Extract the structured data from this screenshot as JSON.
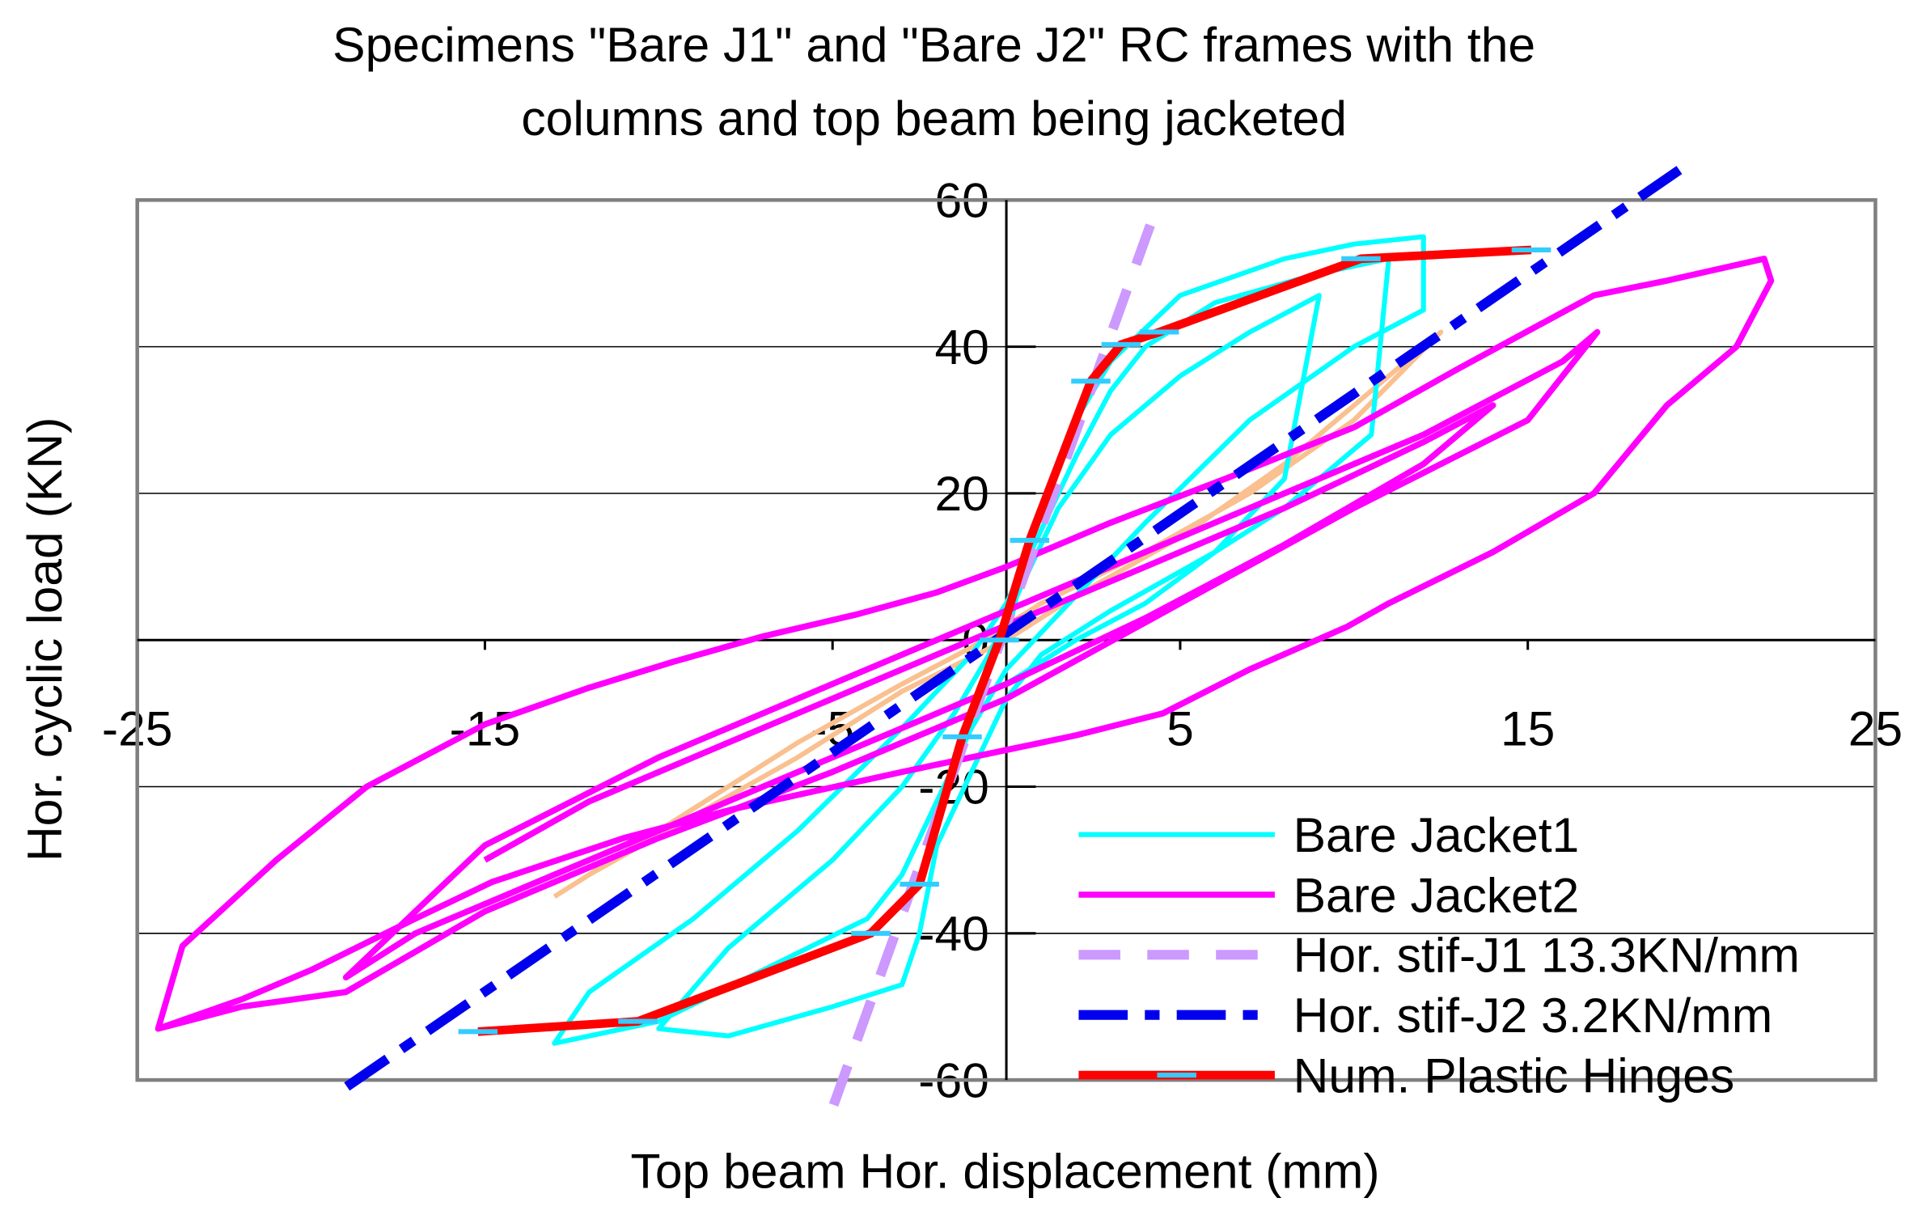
{
  "chart_data": {
    "type": "line",
    "title": [
      "Specimens \"Bare J1\" and \"Bare J2\" RC frames with the",
      "columns and top beam being jacketed"
    ],
    "xlabel": "Top beam Hor. displacement (mm)",
    "ylabel": "Hor. cyclic load  (KN)",
    "xlim": [
      -25,
      25
    ],
    "ylim": [
      -60,
      60
    ],
    "xticks": [
      -25,
      -15,
      -5,
      5,
      15,
      25
    ],
    "yticks": [
      -60,
      -40,
      -20,
      0,
      20,
      40,
      60
    ],
    "grid": true,
    "legend": "lower right",
    "series": [
      {
        "color": "#fac090",
        "line_style": "solid",
        "x": [
          -13,
          -11,
          -8,
          -6,
          -3,
          -1,
          1,
          4,
          7,
          10,
          12.5,
          11,
          8,
          5,
          2,
          0,
          -3,
          -6,
          -9,
          -12,
          -13
        ],
        "y": [
          -35,
          -29,
          -20,
          -14,
          -6,
          -1,
          5,
          12,
          20,
          30,
          42,
          36,
          24,
          14,
          6,
          0,
          -7,
          -16,
          -24,
          -32,
          -35
        ]
      },
      {
        "name": "Bare Jacket1",
        "color": "#00ffff",
        "line_style": "solid",
        "x": [
          0,
          0.5,
          1,
          2,
          3,
          5,
          8,
          10,
          12,
          12,
          10,
          7,
          4,
          2,
          0,
          -1,
          -2,
          -3,
          -4,
          -7,
          -10,
          -13,
          -12,
          -9,
          -6,
          -3,
          -1,
          0,
          1,
          2,
          3,
          4,
          6,
          9,
          11,
          10.5,
          8,
          6,
          3,
          1,
          0,
          -1,
          -2,
          -2.5,
          -3,
          -5,
          -8,
          -10,
          -8,
          -5,
          -3,
          -1.5,
          -0.5,
          0.5,
          1.5,
          3,
          5,
          7,
          9,
          8,
          6,
          4,
          2,
          0
        ],
        "y": [
          0,
          10,
          18,
          30,
          38,
          47,
          52,
          54,
          55,
          45,
          40,
          30,
          16,
          6,
          -4,
          -12,
          -22,
          -32,
          -38,
          -45,
          -52,
          -55,
          -48,
          -38,
          -26,
          -12,
          -2,
          5,
          15,
          25,
          34,
          40,
          46,
          50,
          52,
          28,
          18,
          12,
          4,
          -2,
          -8,
          -18,
          -28,
          -40,
          -47,
          -50,
          -54,
          -53,
          -42,
          -30,
          -20,
          -10,
          -2,
          8,
          18,
          28,
          36,
          42,
          47,
          22,
          12,
          5,
          0,
          -6
        ]
      },
      {
        "name": "Bare Jacket2",
        "color": "#ff00ff",
        "line_style": "solid",
        "x": [
          -24.4,
          -23.7,
          -21,
          -18.4,
          -15,
          -12,
          -9.6,
          -7,
          -4.3,
          -2,
          0,
          3,
          6.3,
          10,
          13,
          16.9,
          19,
          21.8,
          22,
          21,
          19,
          16.9,
          14,
          11,
          9.8,
          7,
          4.5,
          2,
          0,
          -3,
          -7.8,
          -11,
          -14.8,
          -17,
          -20,
          -22,
          -24.4,
          -22,
          -19,
          -15,
          -10,
          -5,
          0,
          5,
          10,
          15,
          17,
          16,
          12,
          8,
          4,
          0,
          -5,
          -10,
          -15,
          -19,
          -17,
          -13,
          -9,
          -5,
          -2,
          0,
          4,
          8,
          12,
          14,
          12,
          8,
          4,
          0,
          -4,
          -8,
          -12,
          -15
        ],
        "y": [
          -53,
          -41.7,
          -30,
          -20,
          -11.5,
          -6.5,
          -3,
          0.5,
          3.5,
          6.5,
          10,
          16,
          22,
          29,
          37,
          47,
          49,
          52,
          49,
          40,
          32,
          20,
          12,
          5,
          1.8,
          -4,
          -10,
          -13,
          -15,
          -18,
          -23,
          -27,
          -33,
          -38,
          -45,
          -49,
          -53,
          -50,
          -48,
          -37,
          -27,
          -18,
          -8,
          5,
          18,
          30,
          42,
          38,
          28,
          20,
          12,
          4,
          -6,
          -16,
          -28,
          -46,
          -40,
          -32,
          -24,
          -16,
          -10,
          -6,
          3,
          13,
          24,
          32,
          27,
          18,
          10,
          2,
          -6,
          -14,
          -22,
          -30
        ]
      },
      {
        "name": "Hor. stif-J1 13.3KN/mm",
        "color": "#cc99ff",
        "line_style": "dashed",
        "x": [
          -4.97,
          4.37
        ],
        "y": [
          -63.4,
          59.6
        ]
      },
      {
        "name": "Hor. stif-J2  3.2KN/mm",
        "color": "#0000ee",
        "line_style": "dash-dot",
        "x": [
          -18.97,
          19.36
        ],
        "y": [
          -60.9,
          64.1
        ]
      },
      {
        "name": "Num. Plastic Hinges",
        "color": "#ff0000",
        "marker_color": "#33ccff",
        "line_style": "solid",
        "markers": true,
        "x": [
          -15.2,
          -10.6,
          -3.9,
          -2.5,
          -1.27,
          -0.2,
          0.67,
          2.43,
          3.3,
          4.4,
          10.2,
          15.1
        ],
        "y": [
          -53.4,
          -52,
          -40,
          -33.3,
          -13.2,
          0,
          13.6,
          35.3,
          40.3,
          42,
          52,
          53.2
        ]
      }
    ]
  }
}
